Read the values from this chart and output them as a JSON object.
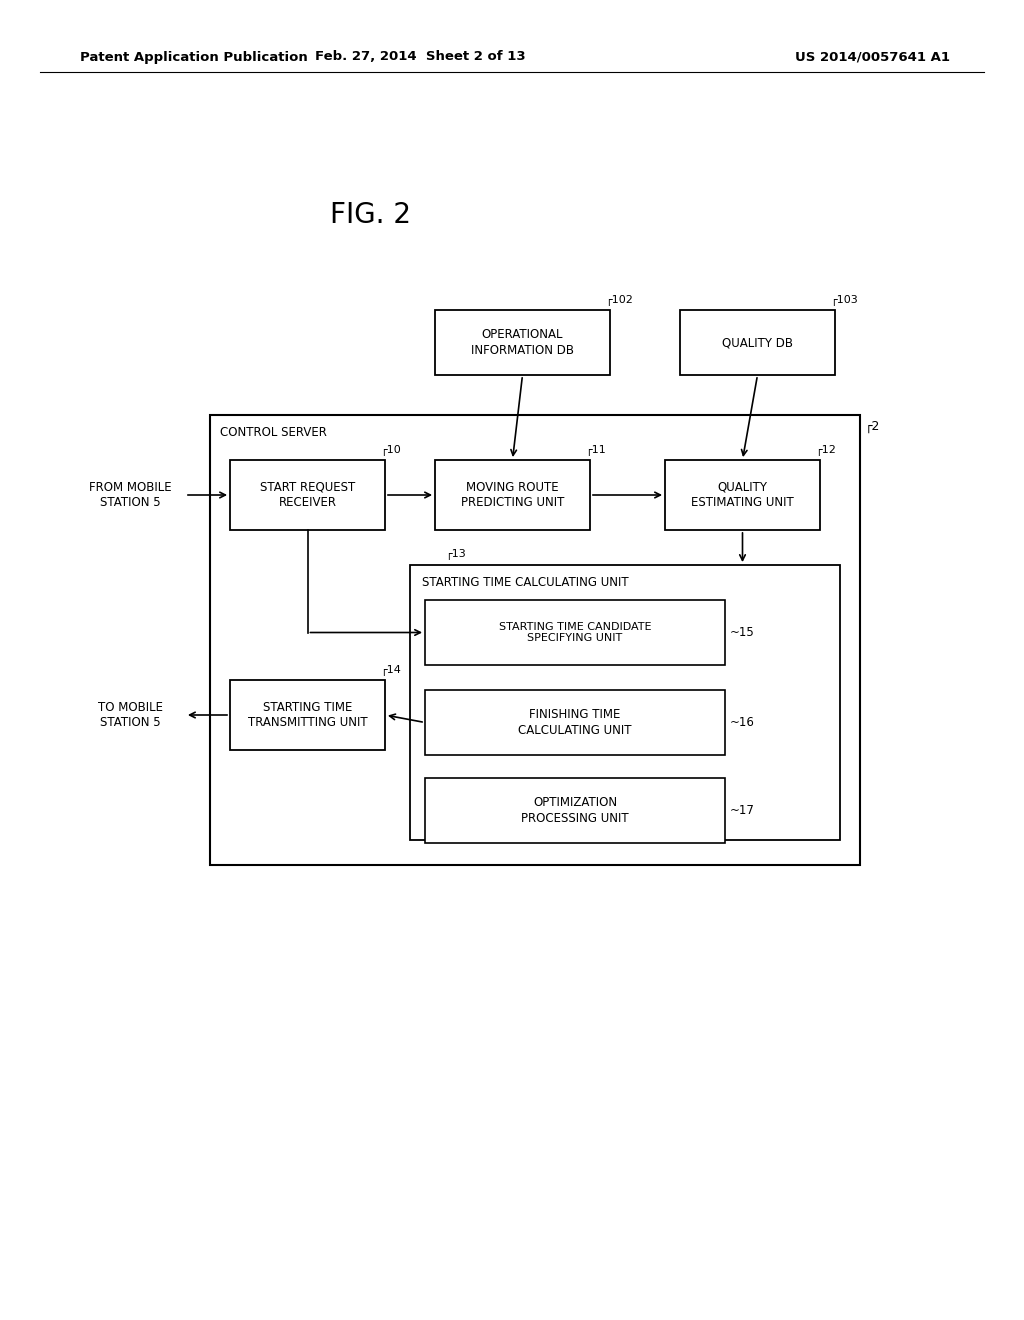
{
  "bg_color": "#ffffff",
  "header_left": "Patent Application Publication",
  "header_center": "Feb. 27, 2014  Sheet 2 of 13",
  "header_right": "US 2014/0057641 A1",
  "fig_label": "FIG. 2",
  "font_size_label": 8.5,
  "font_size_ref": 8.0,
  "font_size_header": 9.0,
  "font_size_fig": 18
}
